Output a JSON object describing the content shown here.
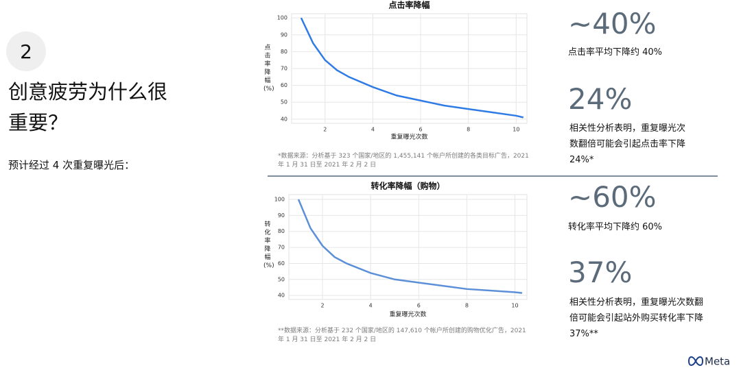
{
  "number": "2",
  "heading": "创意疲劳为什么很重要？",
  "subheading": "预计经过 4 次重复曝光后：",
  "chart_data": [
    {
      "type": "line",
      "title": "点击率降幅",
      "xlabel": "重复曝光次数",
      "ylabel": "点击率降幅(%)",
      "x": [
        1,
        1.5,
        2,
        2.5,
        3,
        4,
        5,
        6,
        7,
        8,
        9,
        10,
        10.3
      ],
      "series": [
        {
          "color": "#2f7be6",
          "values": [
            100,
            85,
            75,
            69,
            65,
            59,
            54,
            51,
            48,
            46,
            44,
            42,
            41
          ]
        }
      ],
      "xlim": [
        0.6,
        10.45
      ],
      "ylim": [
        37.5,
        102.5
      ],
      "xticks": [
        2,
        4,
        6,
        8,
        10
      ],
      "yticks": [
        40,
        50,
        60,
        70,
        80,
        90,
        100
      ],
      "grid": true,
      "note": "*数据来源：分析基于 323 个国家/地区的 1,455,141 个帐户所创建的各类目标广告，2021 年 1 月 31 日至 2021 年 2 月 2 日"
    },
    {
      "type": "line",
      "title": "转化率降幅（购物）",
      "xlabel": "重复曝光次数",
      "ylabel": "转化率降幅(%)",
      "x": [
        1,
        1.5,
        2,
        2.5,
        3,
        4,
        5,
        6,
        7,
        8,
        9,
        10,
        10.3
      ],
      "series": [
        {
          "color": "#5b8fd8",
          "values": [
            100,
            82,
            71,
            64,
            60,
            54,
            50,
            48,
            46,
            44,
            43,
            42,
            41.5
          ]
        }
      ],
      "xlim": [
        0.6,
        10.5
      ],
      "ylim": [
        37.5,
        103
      ],
      "xticks": [
        2,
        4,
        6,
        8,
        10
      ],
      "yticks": [
        40,
        50,
        60,
        70,
        80,
        90,
        100
      ],
      "grid": true,
      "note": "**数据来源：分析基于 232 个国家/地区的 147,610 个帐户所创建的购物优化广告，2021 年 1 月 31 日至 2021 年 2 月 2 日"
    }
  ],
  "stats": [
    {
      "value": "~40%",
      "text": "点击率平均下降约 40%"
    },
    {
      "value": "24%",
      "text": "相关性分析表明，重复曝光次数翻倍可能会引起点击率下降 24%*"
    },
    {
      "value": "~60%",
      "text": "转化率平均下降约 60%"
    },
    {
      "value": "37%",
      "text": "相关性分析表明，重复曝光次数翻倍可能会引起站外购买转化率下降 37%**"
    }
  ],
  "logo": "Meta"
}
